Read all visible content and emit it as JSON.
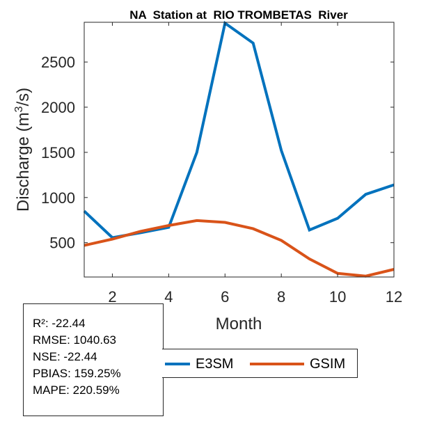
{
  "chart_data": {
    "type": "line",
    "title": "NA  Station at  RIO TROMBETAS  River",
    "xlabel": "Month",
    "ylabel": "Discharge (m³/s)",
    "ylabel_parts": {
      "before": "Discharge (m",
      "sup": "3",
      "after": "/s)"
    },
    "xlim": [
      1,
      12
    ],
    "ylim": [
      120,
      2940
    ],
    "xticks": [
      2,
      4,
      6,
      8,
      10,
      12
    ],
    "yticks": [
      500,
      1000,
      1500,
      2000,
      2500
    ],
    "x": [
      1,
      2,
      3,
      4,
      5,
      6,
      7,
      8,
      9,
      10,
      11,
      12
    ],
    "series": [
      {
        "name": "E3SM",
        "color": "#0072BD",
        "values": [
          850,
          555,
          610,
          670,
          1500,
          2930,
          2710,
          1520,
          640,
          770,
          1035,
          1140
        ]
      },
      {
        "name": "GSIM",
        "color": "#D95319",
        "values": [
          470,
          540,
          625,
          690,
          745,
          725,
          655,
          525,
          320,
          160,
          130,
          205
        ]
      }
    ]
  },
  "stats": {
    "r2": "R²: -22.44",
    "rmse": "RMSE: 1040.63",
    "nse": "NSE: -22.44",
    "pbias": "PBIAS: 159.25%",
    "mape": "MAPE: 220.59%"
  },
  "legend": [
    {
      "label": "E3SM",
      "color": "#0072BD"
    },
    {
      "label": "GSIM",
      "color": "#D95319"
    }
  ]
}
